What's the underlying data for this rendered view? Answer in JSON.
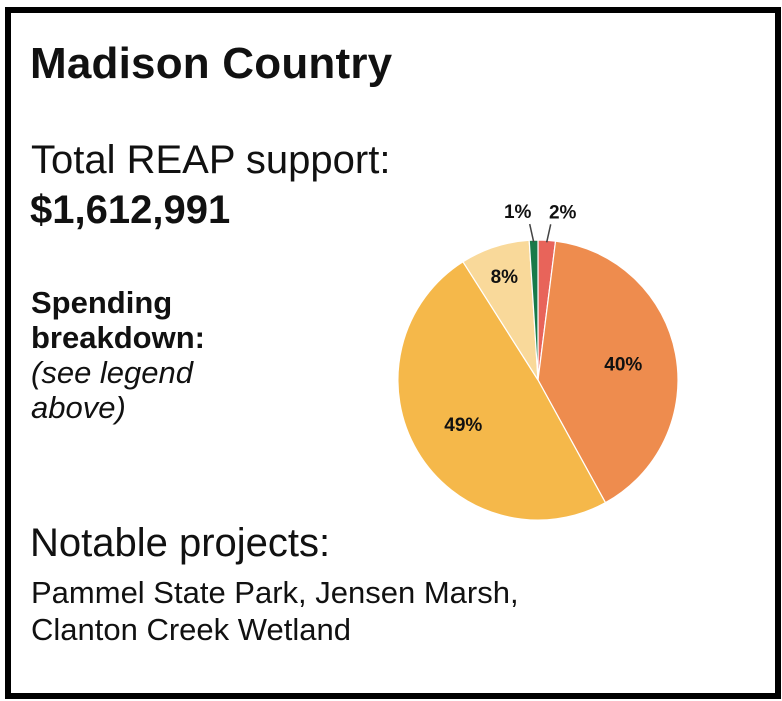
{
  "title": "Madison Country",
  "support": {
    "label": "Total REAP support:",
    "amount": "$1,612,991"
  },
  "breakdown": {
    "heading_line1": "Spending",
    "heading_line2": "breakdown:",
    "note_line1": "(see legend",
    "note_line2": "above)"
  },
  "notable": {
    "heading": "Notable projects:",
    "line1": "Pammel State Park, Jensen Marsh,",
    "line2": "Clanton Creek Wetland"
  },
  "chart_data": {
    "type": "pie",
    "slices": [
      {
        "label": "2%",
        "value": 2,
        "color": "#e8645a"
      },
      {
        "label": "40%",
        "value": 40,
        "color": "#ee8c4e"
      },
      {
        "label": "49%",
        "value": 49,
        "color": "#f5b84a"
      },
      {
        "label": "8%",
        "value": 8,
        "color": "#f9d99a"
      },
      {
        "label": "1%",
        "value": 1,
        "color": "#177a4a"
      }
    ]
  }
}
